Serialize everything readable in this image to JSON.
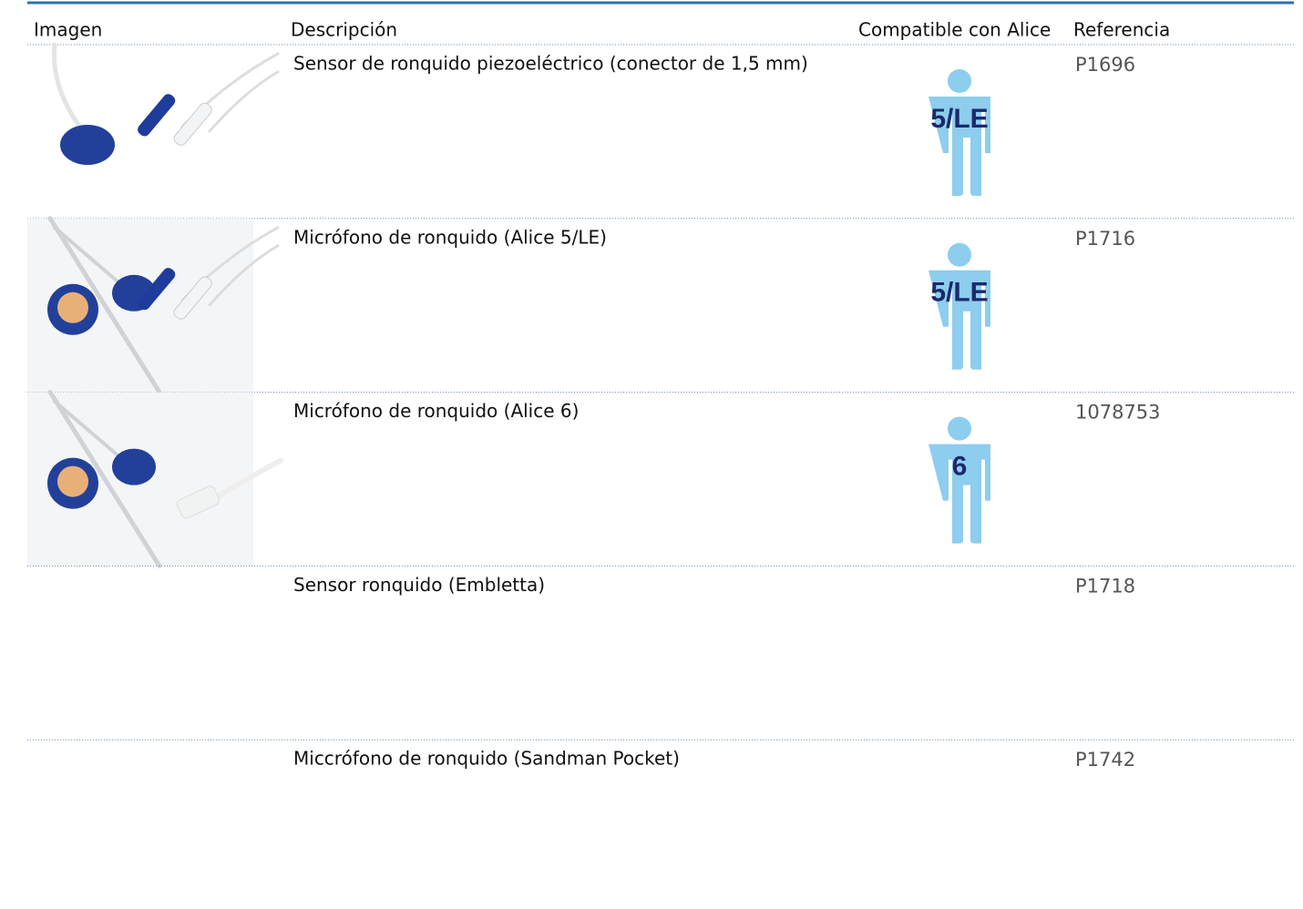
{
  "table": {
    "headers": [
      "Imagen",
      "Descripción",
      "Compatible con Alice",
      "Referencia"
    ],
    "rows": [
      {
        "description": "Sensor de ronquido piezoeléctrico (conector de 1,5 mm)",
        "compatible": "5/LE",
        "reference": "P1696"
      },
      {
        "description": "Micrófono de ronquido (Alice 5/LE)",
        "compatible": "5/LE",
        "reference": "P1716"
      },
      {
        "description": "Micrófono de ronquido (Alice 6)",
        "compatible": "6",
        "reference": "1078753"
      },
      {
        "description": "Sensor ronquido (Embletta)",
        "reference": "P1718"
      },
      {
        "description": "Miccrófono de ronquido  (Sandman Pocket)",
        "reference": "P1742"
      }
    ]
  }
}
